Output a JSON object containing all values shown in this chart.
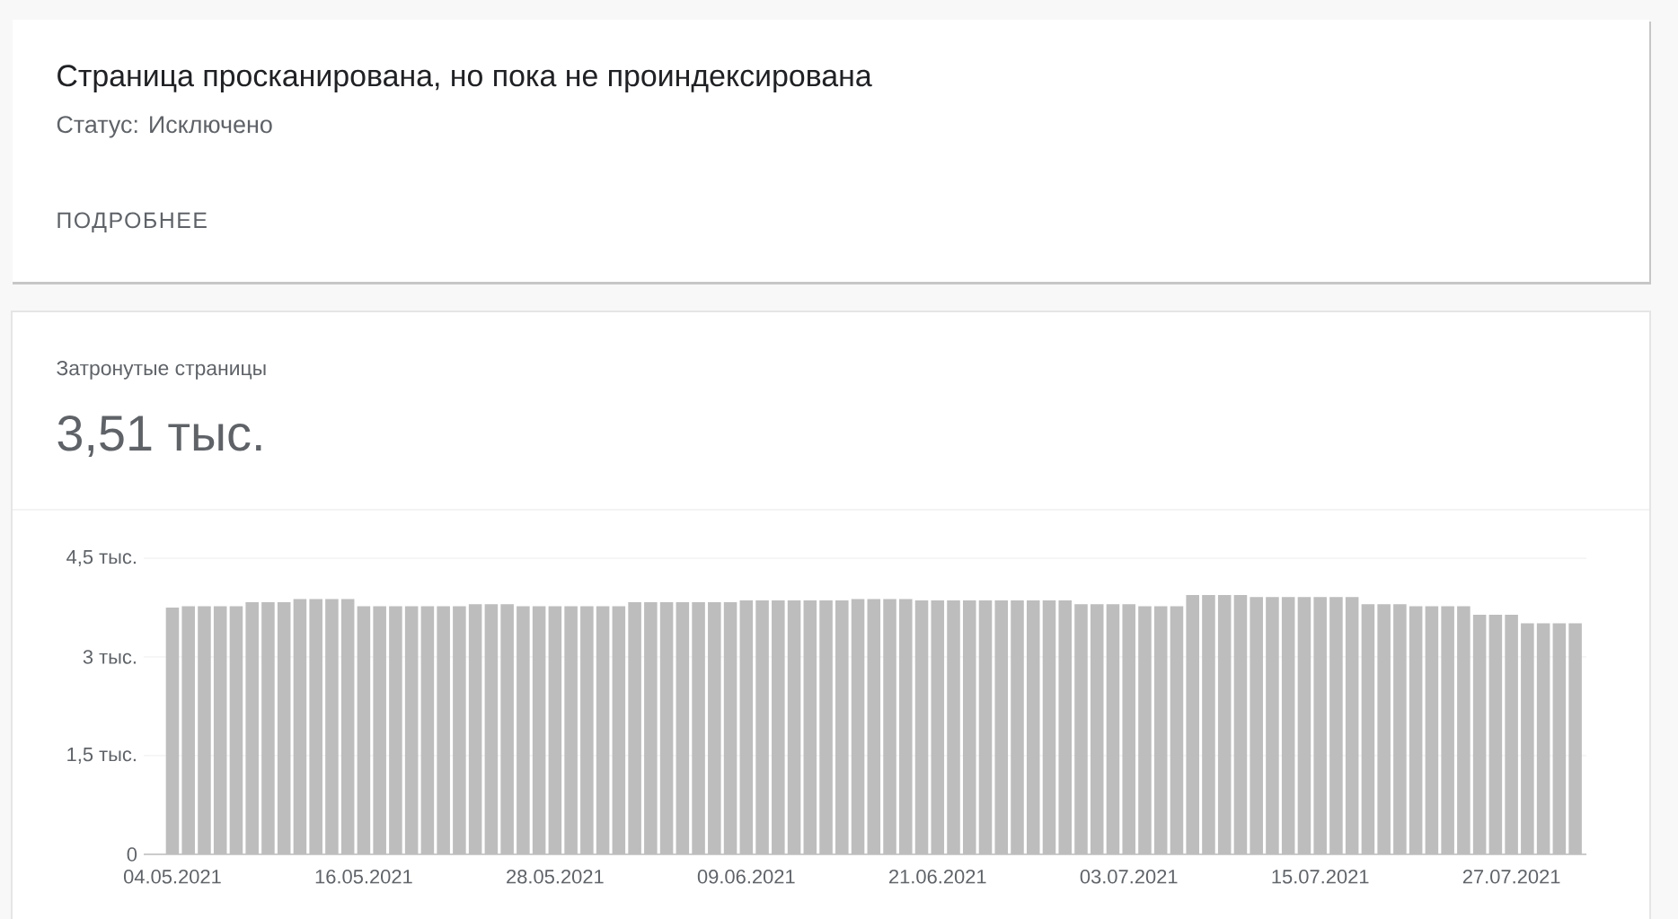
{
  "chart_data": {
    "type": "bar",
    "title": "Страница просканирована, но пока не проиндексирована",
    "subtitle": "Статус: Исключено",
    "annotations": [
      "ПОДРОБНЕЕ",
      "Затронутые страницы",
      "3,51 тыс."
    ],
    "categories": [
      "04.05.2021",
      null,
      null,
      null,
      null,
      null,
      null,
      null,
      null,
      null,
      null,
      null,
      "16.05.2021",
      null,
      null,
      null,
      null,
      null,
      null,
      null,
      null,
      null,
      null,
      null,
      "28.05.2021",
      null,
      null,
      null,
      null,
      null,
      null,
      null,
      null,
      null,
      null,
      null,
      "09.06.2021",
      null,
      null,
      null,
      null,
      null,
      null,
      null,
      null,
      null,
      null,
      null,
      "21.06.2021",
      null,
      null,
      null,
      null,
      null,
      null,
      null,
      null,
      null,
      null,
      null,
      "03.07.2021",
      null,
      null,
      null,
      null,
      null,
      null,
      null,
      null,
      null,
      null,
      null,
      "15.07.2021",
      null,
      null,
      null,
      null,
      null,
      null,
      null,
      null,
      null,
      null,
      null,
      "27.07.2021",
      null,
      null,
      null,
      null
    ],
    "values": [
      3.75,
      3.77,
      3.77,
      3.77,
      3.77,
      3.83,
      3.83,
      3.83,
      3.88,
      3.88,
      3.88,
      3.88,
      3.77,
      3.77,
      3.77,
      3.77,
      3.77,
      3.77,
      3.77,
      3.8,
      3.8,
      3.8,
      3.77,
      3.77,
      3.77,
      3.77,
      3.77,
      3.77,
      3.77,
      3.83,
      3.83,
      3.83,
      3.83,
      3.83,
      3.83,
      3.83,
      3.86,
      3.86,
      3.86,
      3.86,
      3.86,
      3.86,
      3.86,
      3.88,
      3.88,
      3.88,
      3.88,
      3.86,
      3.86,
      3.86,
      3.86,
      3.86,
      3.86,
      3.86,
      3.86,
      3.86,
      3.86,
      3.8,
      3.8,
      3.8,
      3.8,
      3.77,
      3.77,
      3.77,
      3.94,
      3.94,
      3.94,
      3.94,
      3.91,
      3.91,
      3.91,
      3.91,
      3.91,
      3.91,
      3.91,
      3.8,
      3.8,
      3.8,
      3.77,
      3.77,
      3.77,
      3.77,
      3.64,
      3.64,
      3.64,
      3.51,
      3.51,
      3.51,
      3.51
    ],
    "color": "#bdbdbd",
    "ylim": [
      0,
      4.5
    ],
    "yticks": [
      0,
      {
        "value": 1.5,
        "label": "1,5 тыс."
      },
      {
        "value": 3,
        "label": "3 тыс."
      },
      {
        "value": 4.5,
        "label": "4,5 тыс."
      }
    ],
    "grid": "y"
  }
}
